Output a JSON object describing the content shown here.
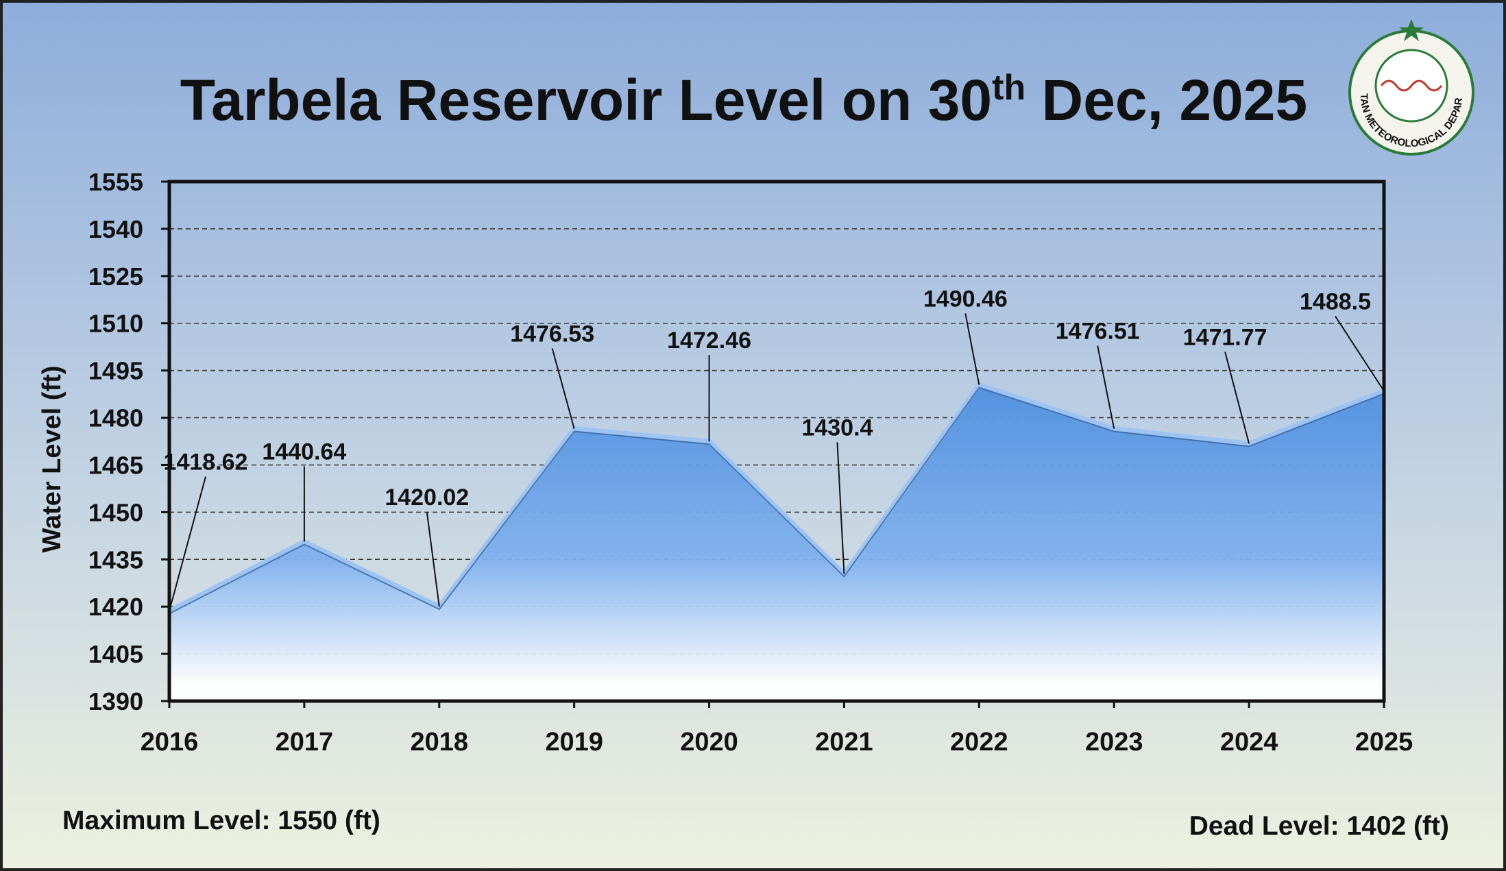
{
  "chart_data": {
    "type": "area",
    "title": [
      "Tarbela Reservoir Level on 30",
      "th",
      " Dec, 2025"
    ],
    "y_label": "Water Level (ft)",
    "categories": [
      "2016",
      "2017",
      "2018",
      "2019",
      "2020",
      "2021",
      "2022",
      "2023",
      "2024",
      "2025"
    ],
    "values": [
      1418.62,
      1440.64,
      1420.02,
      1476.53,
      1472.46,
      1430.4,
      1490.46,
      1476.51,
      1471.77,
      1488.5
    ],
    "color": "#5b9be3",
    "ylim": [
      1390,
      1555
    ],
    "yticks": [
      1390,
      1405,
      1420,
      1435,
      1450,
      1465,
      1480,
      1495,
      1510,
      1525,
      1540,
      1555
    ],
    "grid": true,
    "annotations": [
      "Maximum Level: 1550 (ft)",
      "Dead Level: 1402 (ft)"
    ],
    "logo_text": "PAKISTAN METEOROLOGICAL DEPARTMENT"
  }
}
